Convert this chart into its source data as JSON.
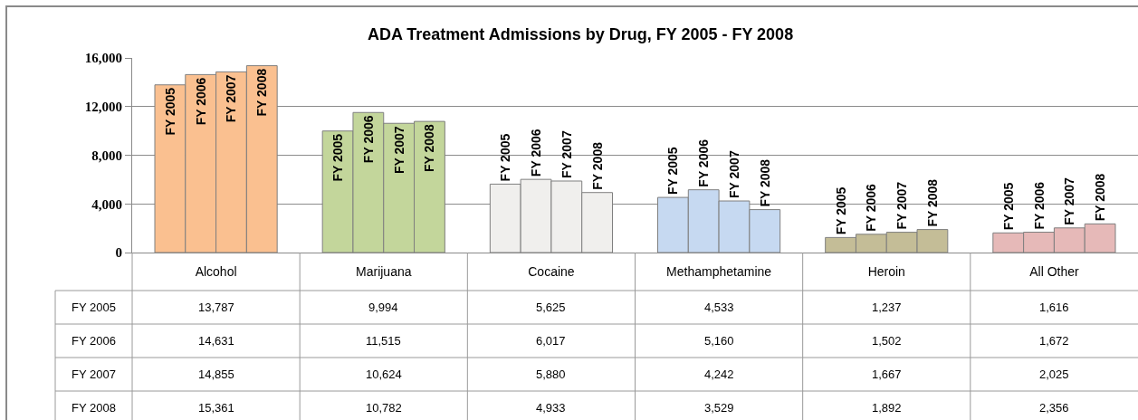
{
  "chart_data": {
    "type": "bar",
    "title": "ADA Treatment Admissions by Drug, FY 2005 - FY 2008",
    "categories": [
      "Alcohol",
      "Marijuana",
      "Cocaine",
      "Methamphetamine",
      "Heroin",
      "All Other"
    ],
    "series": [
      {
        "name": "FY 2005",
        "colors": [
          "#fac090",
          "#c3d69b",
          "#f0efed",
          "#c6d9f1",
          "#c4bd97",
          "#e6b9b8"
        ],
        "values": [
          13787,
          9994,
          5625,
          4533,
          1237,
          1616
        ],
        "value_labels": [
          "13,787",
          "9,994",
          "5,625",
          "4,533",
          "1,237",
          "1,616"
        ]
      },
      {
        "name": "FY 2006",
        "colors": [
          "#fac090",
          "#c3d69b",
          "#f0efed",
          "#c6d9f1",
          "#c4bd97",
          "#e6b9b8"
        ],
        "values": [
          14631,
          11515,
          6017,
          5160,
          1502,
          1672
        ],
        "value_labels": [
          "14,631",
          "11,515",
          "6,017",
          "5,160",
          "1,502",
          "1,672"
        ]
      },
      {
        "name": "FY 2007",
        "colors": [
          "#fac090",
          "#c3d69b",
          "#f0efed",
          "#c6d9f1",
          "#c4bd97",
          "#e6b9b8"
        ],
        "values": [
          14855,
          10624,
          5880,
          4242,
          1667,
          2025
        ],
        "value_labels": [
          "14,855",
          "10,624",
          "5,880",
          "4,242",
          "1,667",
          "2,025"
        ]
      },
      {
        "name": "FY 2008",
        "colors": [
          "#fac090",
          "#c3d69b",
          "#f0efed",
          "#c6d9f1",
          "#c4bd97",
          "#e6b9b8"
        ],
        "values": [
          15361,
          10782,
          4933,
          3529,
          1892,
          2356
        ],
        "value_labels": [
          "15,361",
          "10,782",
          "4,933",
          "3,529",
          "1,892",
          "2,356"
        ]
      }
    ],
    "ylim": [
      0,
      16000
    ],
    "yticks": [
      0,
      {
        "value": 4000,
        "label": "4,000"
      },
      {
        "value": 8000,
        "label": "8,000"
      },
      {
        "value": 12000,
        "label": "12,000"
      },
      {
        "value": 16000,
        "label": "16,000"
      }
    ],
    "grid": "y"
  }
}
